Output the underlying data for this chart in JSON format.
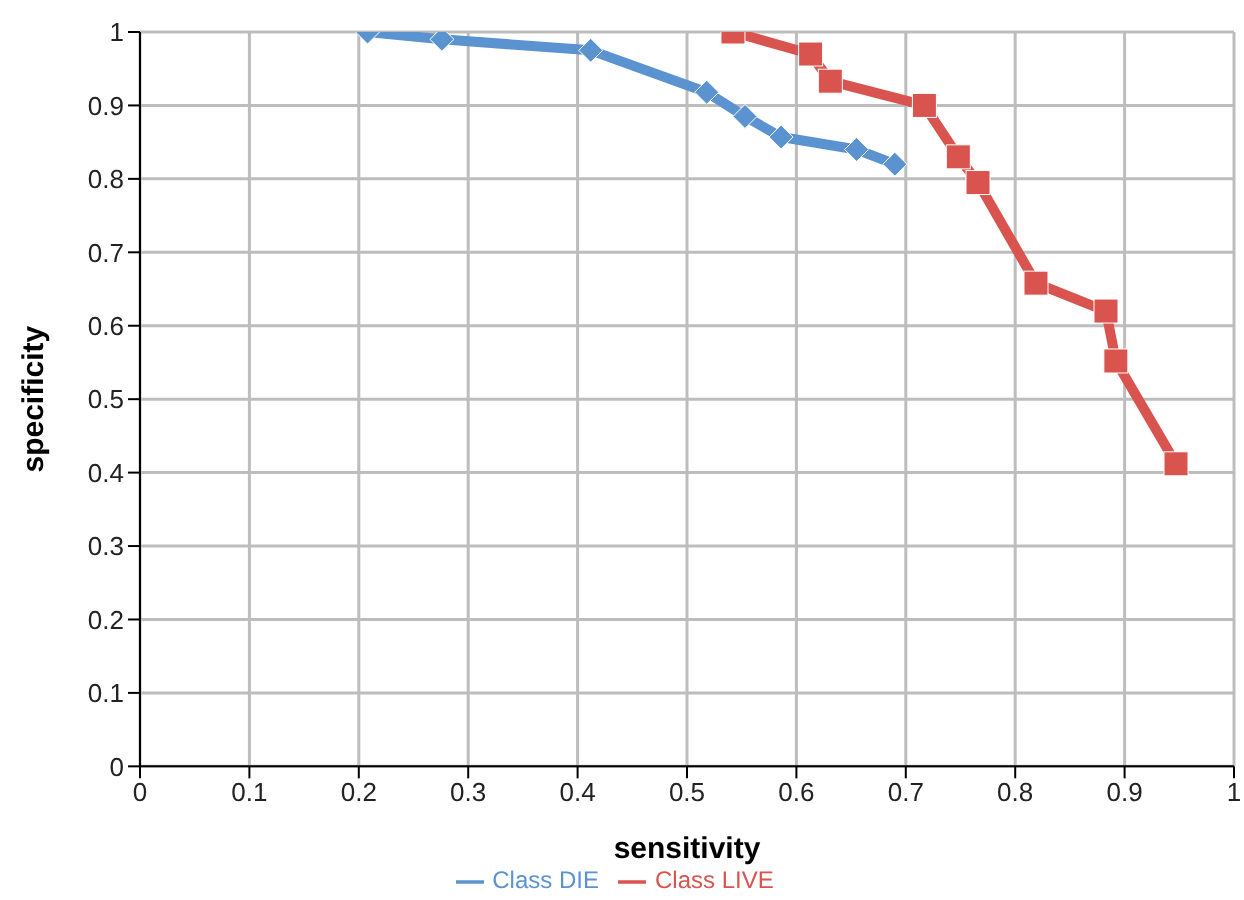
{
  "chart_data": {
    "type": "line",
    "xlabel": "sensitivity",
    "ylabel": "specificity",
    "xlim": [
      0,
      1
    ],
    "ylim": [
      0,
      1
    ],
    "xticks": [
      0,
      0.1,
      0.2,
      0.3,
      0.4,
      0.5,
      0.6,
      0.7,
      0.8,
      0.9,
      1
    ],
    "yticks": [
      0,
      0.1,
      0.2,
      0.3,
      0.4,
      0.5,
      0.6,
      0.7,
      0.8,
      0.9,
      1
    ],
    "grid": true,
    "legend": "bottom",
    "series": [
      {
        "name": "Class DIE",
        "color": "#5b93d0",
        "marker": "diamond",
        "x": [
          0.208,
          0.276,
          0.412,
          0.518,
          0.553,
          0.586,
          0.655,
          0.69
        ],
        "values": [
          1.0,
          0.99,
          0.975,
          0.918,
          0.885,
          0.857,
          0.84,
          0.82
        ]
      },
      {
        "name": "Class LIVE",
        "color": "#d9534f",
        "marker": "square",
        "x": [
          0.542,
          0.613,
          0.631,
          0.717,
          0.748,
          0.766,
          0.819,
          0.883,
          0.892,
          0.947
        ],
        "values": [
          1.0,
          0.97,
          0.933,
          0.9,
          0.83,
          0.795,
          0.658,
          0.62,
          0.552,
          0.412
        ]
      }
    ]
  }
}
